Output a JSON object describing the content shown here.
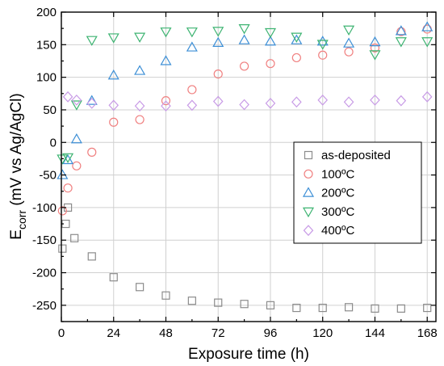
{
  "chart_data": {
    "type": "scatter",
    "xlabel": "Exposure time (h)",
    "ylabel": {
      "main": "E",
      "sub": "corr",
      "rest": " (mV vs Ag/AgCl)"
    },
    "xlim": [
      0,
      172
    ],
    "ylim": [
      -275,
      200
    ],
    "xticks": [
      "0",
      "24",
      "48",
      "72",
      "96",
      "120",
      "144",
      "168"
    ],
    "yticks": [
      "-250",
      "-200",
      "-150",
      "-100",
      "-50",
      "0",
      "50",
      "100",
      "150",
      "200"
    ],
    "grid": true,
    "legend_position": "right",
    "series": [
      {
        "name": "as-deposited",
        "marker": "square",
        "color": "#8c8c8c",
        "points": [
          [
            0.5,
            -163
          ],
          [
            2,
            -125
          ],
          [
            3,
            -100
          ],
          [
            6,
            -147
          ],
          [
            14,
            -175
          ],
          [
            24,
            -207
          ],
          [
            36,
            -222
          ],
          [
            48,
            -235
          ],
          [
            60,
            -243
          ],
          [
            72,
            -246
          ],
          [
            84,
            -248
          ],
          [
            96,
            -250
          ],
          [
            108,
            -254
          ],
          [
            120,
            -254
          ],
          [
            132,
            -253
          ],
          [
            144,
            -255
          ],
          [
            156,
            -255
          ],
          [
            168,
            -254
          ]
        ]
      },
      {
        "name": "100ºC",
        "marker": "circle",
        "color": "#f08080",
        "points": [
          [
            0.5,
            -105
          ],
          [
            3,
            -70
          ],
          [
            7,
            -36
          ],
          [
            14,
            -15
          ],
          [
            24,
            31
          ],
          [
            36,
            35
          ],
          [
            48,
            64
          ],
          [
            60,
            81
          ],
          [
            72,
            105
          ],
          [
            84,
            117
          ],
          [
            96,
            121
          ],
          [
            108,
            130
          ],
          [
            120,
            134
          ],
          [
            132,
            139
          ],
          [
            144,
            145
          ],
          [
            156,
            170
          ],
          [
            168,
            174
          ]
        ]
      },
      {
        "name": "200ºC",
        "marker": "triangle-up",
        "color": "#3d8fd6",
        "points": [
          [
            0.5,
            -50
          ],
          [
            3,
            -27
          ],
          [
            7,
            5
          ],
          [
            14,
            64
          ],
          [
            24,
            103
          ],
          [
            36,
            110
          ],
          [
            48,
            125
          ],
          [
            60,
            146
          ],
          [
            72,
            153
          ],
          [
            84,
            157
          ],
          [
            96,
            155
          ],
          [
            108,
            157
          ],
          [
            120,
            155
          ],
          [
            132,
            152
          ],
          [
            144,
            154
          ],
          [
            156,
            171
          ],
          [
            168,
            177
          ]
        ]
      },
      {
        "name": "300ºC",
        "marker": "triangle-down",
        "color": "#3cb371",
        "points": [
          [
            0.5,
            -25
          ],
          [
            3,
            -23
          ],
          [
            7,
            58
          ],
          [
            14,
            157
          ],
          [
            24,
            161
          ],
          [
            36,
            162
          ],
          [
            48,
            170
          ],
          [
            60,
            170
          ],
          [
            72,
            171
          ],
          [
            84,
            175
          ],
          [
            96,
            169
          ],
          [
            108,
            162
          ],
          [
            120,
            151
          ],
          [
            132,
            173
          ],
          [
            144,
            135
          ],
          [
            156,
            155
          ],
          [
            168,
            155
          ]
        ]
      },
      {
        "name": "400ºC",
        "marker": "diamond",
        "color": "#c89be6",
        "points": [
          [
            3,
            70
          ],
          [
            7,
            65
          ],
          [
            14,
            60
          ],
          [
            24,
            57
          ],
          [
            36,
            56
          ],
          [
            48,
            56
          ],
          [
            60,
            57
          ],
          [
            72,
            63
          ],
          [
            84,
            58
          ],
          [
            96,
            60
          ],
          [
            108,
            62
          ],
          [
            120,
            65
          ],
          [
            132,
            62
          ],
          [
            144,
            65
          ],
          [
            156,
            64
          ],
          [
            168,
            70
          ]
        ]
      }
    ]
  }
}
